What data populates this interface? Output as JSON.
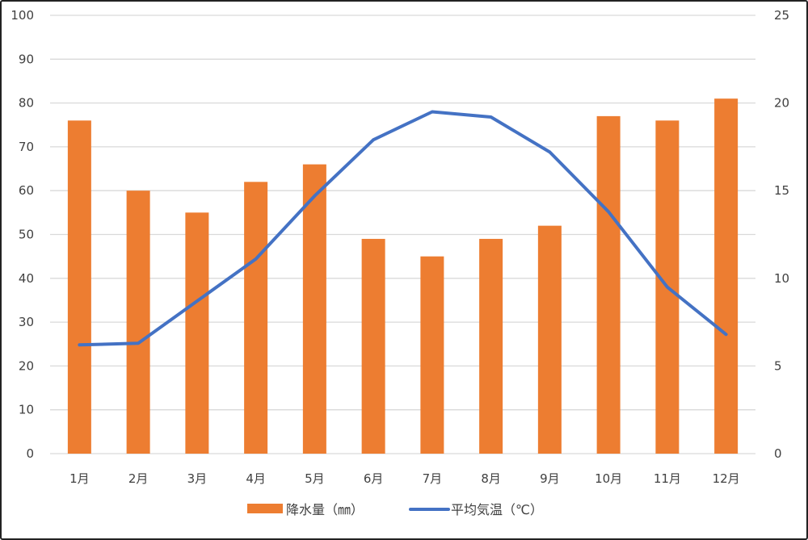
{
  "chart_data": {
    "type": "bar+line",
    "title": "",
    "categories": [
      "1月",
      "2月",
      "3月",
      "4月",
      "5月",
      "6月",
      "7月",
      "8月",
      "9月",
      "10月",
      "11月",
      "12月"
    ],
    "series": [
      {
        "name": "降水量（㎜）",
        "type": "bar",
        "axis": "left",
        "color": "#ED7D31",
        "values": [
          76,
          60,
          55,
          62,
          66,
          49,
          45,
          49,
          52,
          77,
          76,
          81
        ]
      },
      {
        "name": "平均気温（℃）",
        "type": "line",
        "axis": "right",
        "color": "#4472C4",
        "values": [
          6.2,
          6.3,
          8.7,
          11.1,
          14.7,
          17.9,
          19.5,
          19.2,
          17.2,
          13.8,
          9.5,
          6.8
        ]
      }
    ],
    "left_axis": {
      "min": 0,
      "max": 100,
      "step": 10,
      "ticks": [
        "0",
        "10",
        "20",
        "30",
        "40",
        "50",
        "60",
        "70",
        "80",
        "90",
        "100"
      ]
    },
    "right_axis": {
      "min": 0,
      "max": 25,
      "step": 5,
      "ticks": [
        "0",
        "5",
        "10",
        "15",
        "20",
        "25"
      ]
    },
    "xlabel": "",
    "ylabel": "",
    "y2label": "",
    "grid": true,
    "legend_position": "bottom"
  },
  "legend": {
    "bar_label": "降水量（㎜）",
    "line_label": "平均気温（℃）"
  },
  "colors": {
    "bar": "#ED7D31",
    "line": "#4472C4",
    "grid": "#D9D9D9",
    "text": "#404040"
  }
}
